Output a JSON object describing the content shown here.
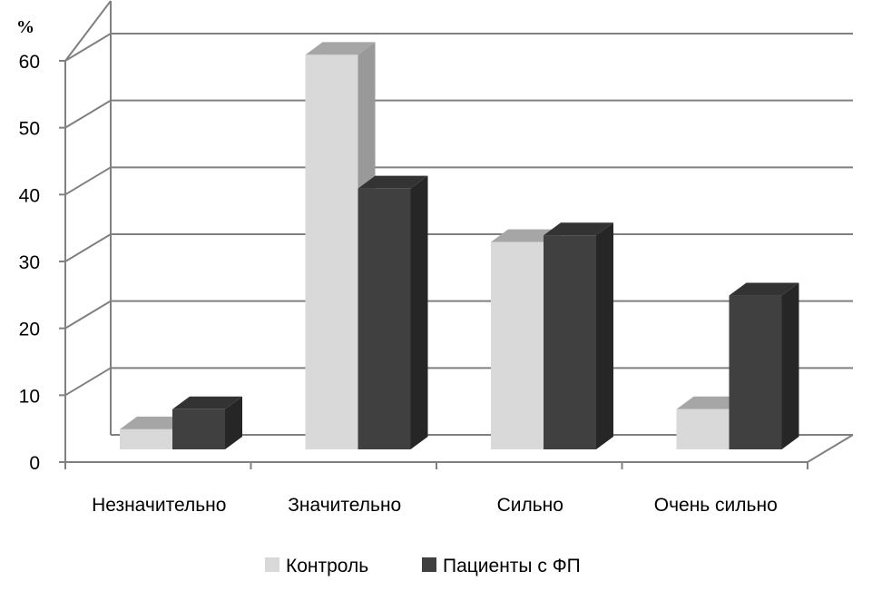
{
  "chart_data": {
    "type": "bar",
    "style": "3d-clustered-column",
    "unit_label": "%",
    "categories": [
      "Незначительно",
      "Значительно",
      "Сильно",
      "Очень сильно"
    ],
    "series": [
      {
        "name": "Контроль",
        "values": [
          3,
          59,
          31,
          6
        ],
        "color": "#d9d9d9"
      },
      {
        "name": "Пациенты с ФП",
        "values": [
          6,
          39,
          32,
          23
        ],
        "color": "#404040"
      }
    ],
    "yticks": [
      0,
      10,
      20,
      30,
      40,
      50,
      60
    ],
    "ylim": [
      0,
      60
    ],
    "grid": true,
    "legend_position": "bottom"
  }
}
